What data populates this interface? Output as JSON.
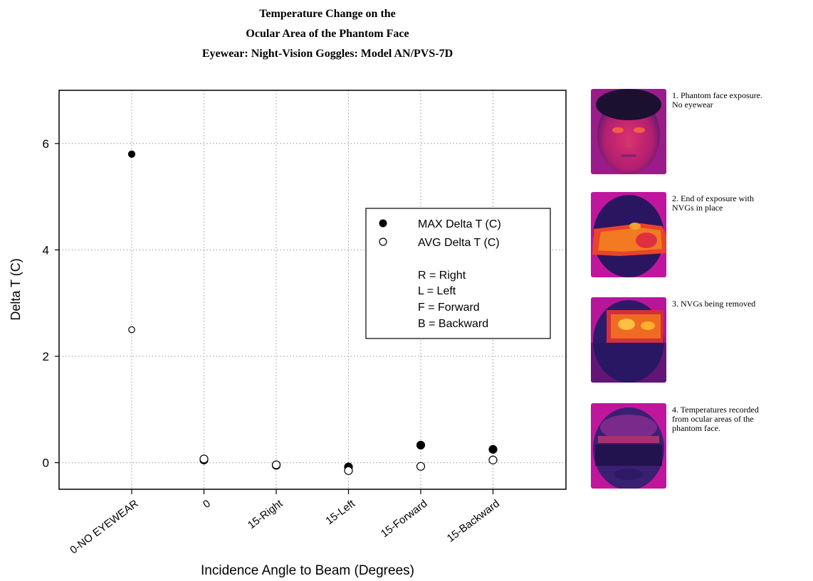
{
  "chart_data": {
    "type": "scatter",
    "title": [
      "Temperature Change on the",
      "Ocular Area of the Phantom Face",
      "Eyewear: Night-Vision Goggles: Model AN/PVS-7D"
    ],
    "xlabel": "Incidence Angle to Beam (Degrees)",
    "ylabel": "Delta T (C)",
    "categories": [
      "0-NO EYEWEAR",
      "0",
      "15-Right",
      "15-Left",
      "15-Forward",
      "15-Backward"
    ],
    "ylim": [
      -0.5,
      7
    ],
    "yticks": [
      0,
      2,
      4,
      6
    ],
    "grid": true,
    "legend_position": "center-right",
    "series": [
      {
        "name": "MAX Delta T (C)",
        "marker": "filled-circle",
        "color": "#000000",
        "values": [
          5.8,
          0.05,
          -0.05,
          -0.08,
          0.33,
          0.25
        ]
      },
      {
        "name": "AVG Delta T (C)",
        "marker": "open-circle",
        "color": "#000000",
        "values": [
          2.5,
          0.07,
          -0.04,
          -0.15,
          -0.07,
          0.05
        ]
      }
    ],
    "legend_notes": [
      "R = Right",
      "L = Left",
      "F = Forward",
      "B = Backward"
    ]
  },
  "thermal_panels": [
    {
      "caption": "1. Phantom face exposure.\n    No eyewear",
      "image": "thermal-face-no-eyewear"
    },
    {
      "caption": "2. End of exposure with\n    NVGs in place",
      "image": "thermal-face-nvg-in-place"
    },
    {
      "caption": "3. NVGs being removed",
      "image": "thermal-face-nvg-removed"
    },
    {
      "caption": "4. Temperatures recorded\n    from ocular areas of the\n    phantom face.",
      "image": "thermal-face-ocular-recorded"
    }
  ],
  "colors": {
    "thermal_background": "#c0169e",
    "thermal_face": "#2a1660",
    "thermal_hot": "#ff9a1e"
  }
}
